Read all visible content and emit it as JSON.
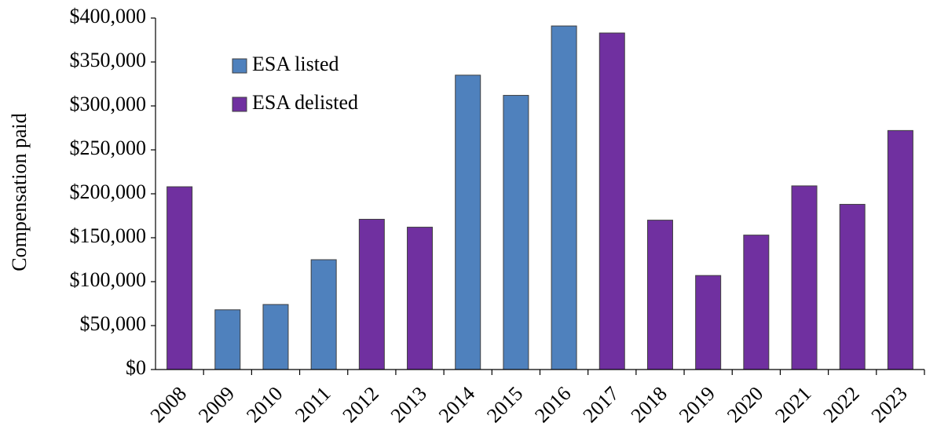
{
  "chart_data": {
    "type": "bar",
    "y_label": "Compensation paid",
    "categories": [
      "2008",
      "2009",
      "2010",
      "2011",
      "2012",
      "2013",
      "2014",
      "2015",
      "2016",
      "2017",
      "2018",
      "2019",
      "2020",
      "2021",
      "2022",
      "2023"
    ],
    "series": [
      {
        "name": "ESA listed",
        "color": "#4f81bd",
        "values": [
          null,
          68000,
          74000,
          125000,
          null,
          null,
          335000,
          312000,
          391000,
          null,
          null,
          null,
          null,
          null,
          null,
          null
        ]
      },
      {
        "name": "ESA delisted",
        "color": "#7030a0",
        "values": [
          208000,
          null,
          null,
          null,
          171000,
          162000,
          null,
          null,
          null,
          383000,
          170000,
          107000,
          153000,
          209000,
          188000,
          272000
        ]
      }
    ],
    "ylim": [
      0,
      400000
    ],
    "yticks": [
      {
        "value": 0,
        "label": "$0"
      },
      {
        "value": 50000,
        "label": "$50,000"
      },
      {
        "value": 100000,
        "label": "$100,000"
      },
      {
        "value": 150000,
        "label": "$150,000"
      },
      {
        "value": 200000,
        "label": "$200,000"
      },
      {
        "value": 250000,
        "label": "$250,000"
      },
      {
        "value": 300000,
        "label": "$300,000"
      },
      {
        "value": 350000,
        "label": "$350,000"
      },
      {
        "value": 400000,
        "label": "$400,000"
      }
    ],
    "grid": false,
    "legend": "top-left"
  }
}
